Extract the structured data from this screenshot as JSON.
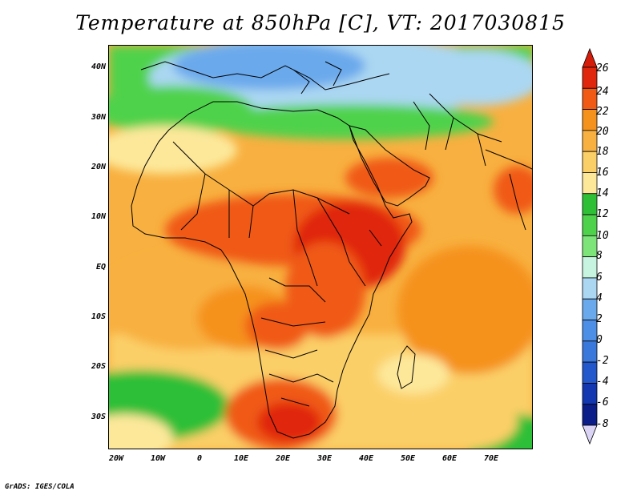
{
  "title": "Temperature at 850hPa [C], VT: 2017030815",
  "credits": "GrADS: IGES/COLA",
  "map": {
    "lat_labels": [
      "40N",
      "30N",
      "20N",
      "10N",
      "EQ",
      "10S",
      "20S",
      "30S"
    ],
    "lon_labels": [
      "20W",
      "10W",
      "0",
      "10E",
      "20E",
      "30E",
      "40E",
      "50E",
      "60E",
      "70E"
    ],
    "lat_range": [
      -37,
      45
    ],
    "lon_range": [
      -22,
      80
    ]
  },
  "colorbar": {
    "labels": [
      "26",
      "24",
      "22",
      "20",
      "18",
      "16",
      "14",
      "12",
      "10",
      "8",
      "6",
      "4",
      "2",
      "0",
      "-2",
      "-4",
      "-6",
      "-8"
    ],
    "colors": [
      "#e0270e",
      "#f05a15",
      "#f5921e",
      "#f8b040",
      "#fbcf67",
      "#fde89a",
      "#2fbf37",
      "#4fd24b",
      "#7de47a",
      "#c6f4e0",
      "#abd7f2",
      "#6aa9ec",
      "#4d8fe6",
      "#3b78dc",
      "#2258cc",
      "#1237b0",
      "#0a1d88"
    ],
    "top_arrow_color": "#d41d0b",
    "bottom_arrow_color": "#dcd4f4"
  }
}
